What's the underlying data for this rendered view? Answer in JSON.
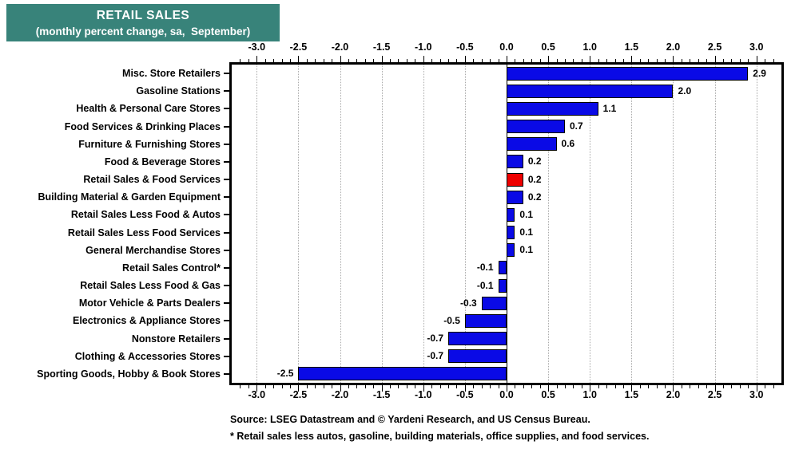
{
  "title": {
    "line1": "RETAIL SALES",
    "line2": "(monthly percent change, sa,  September)"
  },
  "colors": {
    "title_bg": "#38837A",
    "title_text": "#FFFFFF",
    "bar": "#0A0AE6",
    "bar_highlight": "#EE0000",
    "grid": "#AAAAAA",
    "axis": "#000000"
  },
  "chart_data": {
    "type": "bar",
    "orientation": "horizontal",
    "title": "RETAIL SALES (monthly percent change, sa, September)",
    "categories": [
      "Misc. Store Retailers",
      "Gasoline Stations",
      "Health & Personal Care Stores",
      "Food Services & Drinking Places",
      "Furniture & Furnishing Stores",
      "Food & Beverage Stores",
      "Retail Sales & Food Services",
      "Building Material & Garden Equipment",
      "Retail Sales Less Food & Autos",
      "Retail Sales Less Food Services",
      "General Merchandise Stores",
      "Retail Sales Control*",
      "Retail Sales Less Food & Gas",
      "Motor Vehicle & Parts Dealers",
      "Electronics & Appliance Stores",
      "Nonstore Retailers",
      "Clothing & Accessories Stores",
      "Sporting Goods, Hobby & Book Stores"
    ],
    "values": [
      2.9,
      2.0,
      1.1,
      0.7,
      0.6,
      0.2,
      0.2,
      0.2,
      0.1,
      0.1,
      0.1,
      -0.1,
      -0.1,
      -0.3,
      -0.5,
      -0.7,
      -0.7,
      -2.5
    ],
    "value_labels": [
      "2.9",
      "2.0",
      "1.1",
      "0.7",
      "0.6",
      "0.2",
      "0.2",
      "0.2",
      "0.1",
      "0.1",
      "0.1",
      "-0.1",
      "-0.1",
      "-0.3",
      "-0.5",
      "-0.7",
      "-0.7",
      "-2.5"
    ],
    "highlight_category": "Retail Sales & Food Services",
    "xlim": [
      -3.3,
      3.3
    ],
    "x_major_tick": 0.5,
    "x_minor_tick": 0.1,
    "x_tick_labels": [
      "-3.0",
      "-2.5",
      "-2.0",
      "-1.5",
      "-1.0",
      "-0.5",
      "0.0",
      "0.5",
      "1.0",
      "1.5",
      "2.0",
      "2.5",
      "3.0"
    ],
    "grid": "vertical dotted at major ticks",
    "zero_line": true,
    "axis_label_position": "top and bottom"
  },
  "footer": {
    "source_line": "Source: LSEG Datastream and © Yardeni Research, and US Census Bureau.",
    "note_line": "* Retail sales less autos, gasoline, building materials, office supplies, and food services."
  }
}
